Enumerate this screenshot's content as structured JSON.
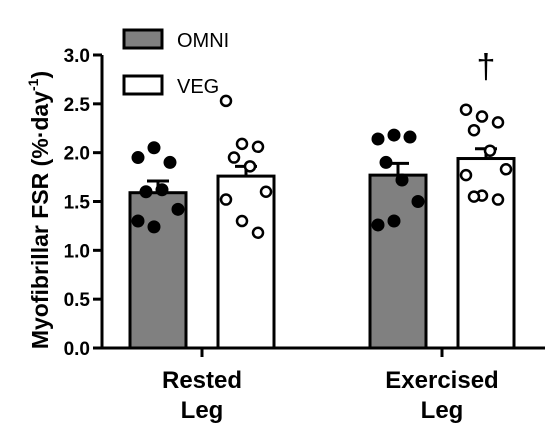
{
  "chart_data": {
    "type": "bar",
    "ylabel": "Myofibrillar FSR (%·day",
    "ylabel_superscript": "-1",
    "ylabel_close": ")",
    "ylim": [
      0,
      3.0
    ],
    "yticks": [
      "0.0",
      "0.5",
      "1.0",
      "1.5",
      "2.0",
      "2.5",
      "3.0"
    ],
    "categories": [
      {
        "line1": "Rested",
        "line2": "Leg"
      },
      {
        "line1": "Exercised",
        "line2": "Leg"
      }
    ],
    "series": [
      {
        "name": "OMNI",
        "color": "#808080",
        "marker": "filled",
        "values": [
          1.59,
          1.77
        ],
        "errors": [
          0.12,
          0.12
        ],
        "points": [
          [
            1.95,
            2.05,
            1.9,
            1.6,
            1.62,
            1.42,
            1.3,
            1.24
          ],
          [
            2.14,
            2.18,
            2.16,
            1.9,
            1.72,
            1.5,
            1.26,
            1.3
          ]
        ]
      },
      {
        "name": "VEG",
        "color": "#ffffff",
        "marker": "open",
        "values": [
          1.76,
          1.94
        ],
        "errors": [
          0.1,
          0.1
        ],
        "points": [
          [
            2.53,
            2.09,
            2.06,
            1.95,
            1.86,
            1.6,
            1.52,
            1.3,
            1.18
          ],
          [
            2.44,
            2.37,
            2.31,
            2.23,
            2.02,
            1.83,
            1.77,
            1.56,
            1.52,
            1.55
          ]
        ]
      }
    ],
    "annotations": [
      {
        "category_index": 1,
        "series_index": 1,
        "text": "†"
      }
    ],
    "legend": "top-left",
    "grid": false
  }
}
